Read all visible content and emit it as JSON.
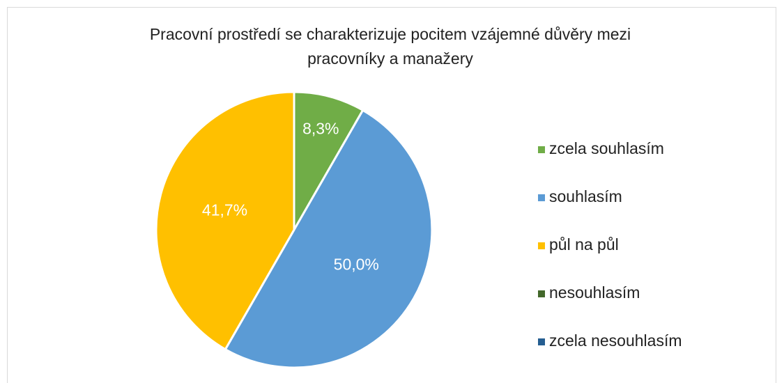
{
  "chart_data": {
    "type": "pie",
    "title": "Pracovní prostředí se charakterizuje pocitem vzájemné důvěry mezi pracovníky a manažery",
    "categories": [
      "zcela souhlasím",
      "souhlasím",
      "půl na půl",
      "nesouhlasím",
      "zcela nesouhlasím"
    ],
    "values": [
      8.3,
      50.0,
      41.7,
      0,
      0
    ],
    "value_labels": [
      "8,3%",
      "50,0%",
      "41,7%",
      null,
      null
    ],
    "colors": [
      "#70ad47",
      "#5b9bd5",
      "#ffc000",
      "#43682b",
      "#255e91"
    ],
    "legend": "right"
  }
}
